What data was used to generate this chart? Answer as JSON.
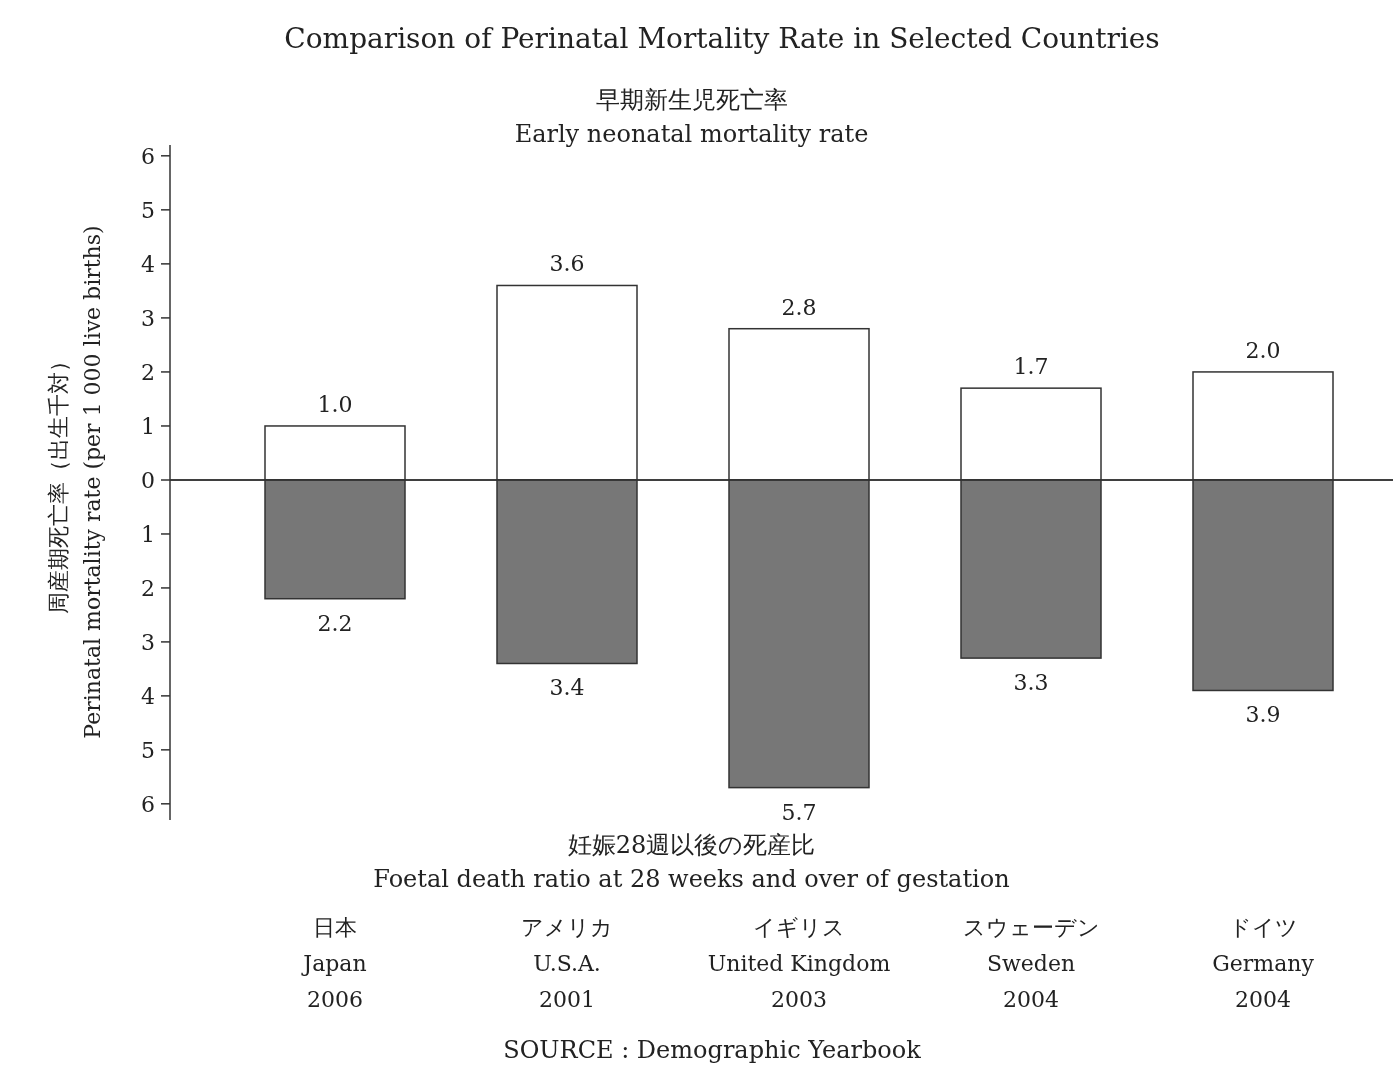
{
  "chart_data": [
    {
      "type": "bar",
      "title": "Comparison of Perinatal Mortality Rate in Selected Countries",
      "ylabel": "周産期死亡率（出生千対）\nPerinatal mortality rate (per 1 000 live births)",
      "series": [
        {
          "name": "早期新生児死亡率\nEarly neonatal mortality rate",
          "color": "#ffffff",
          "values": [
            1.0,
            3.6,
            2.8,
            1.7,
            2.0
          ],
          "value_labels": [
            "1.0",
            "3.6",
            "2.8",
            "1.7",
            "2.0"
          ]
        }
      ],
      "ylim": [
        0,
        6.2
      ],
      "yticks": [
        0,
        1,
        2,
        3,
        4,
        5,
        6
      ],
      "tick_labels": "y"
    },
    {
      "type": "bar",
      "categories": [
        "日本\nJapan\n2006",
        "アメリカ\nU.S.A.\n2001",
        "イギリス\nUnited Kingdom\n2003",
        "スウェーデン\nSweden\n2004",
        "ドイツ\nGermany\n2004"
      ],
      "series": [
        {
          "name": "妊娠28週以後の死産比\nFoetal death ratio at 28 weeks and over of gestation",
          "color": "#777777",
          "values": [
            2.2,
            3.4,
            5.7,
            3.3,
            3.9
          ],
          "value_labels": [
            "2.2",
            "3.4",
            "5.7",
            "3.3",
            "3.9"
          ]
        }
      ],
      "ylim": [
        6.3,
        0
      ],
      "yticks": [
        1,
        2,
        3,
        4,
        5,
        6
      ],
      "annotations": [
        "SOURCE : Demographic Yearbook"
      ]
    }
  ]
}
